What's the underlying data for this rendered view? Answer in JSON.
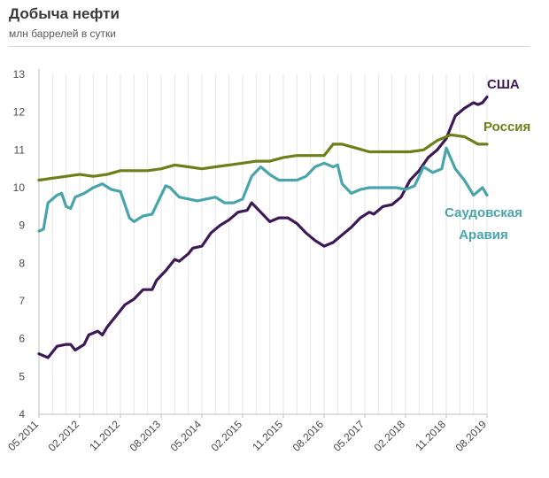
{
  "title": "Добыча нефти",
  "subtitle": "млн баррелей в сутки",
  "chart_data": {
    "type": "line",
    "title": "Добыча нефти",
    "ylabel": "млн баррелей в сутки",
    "xlabel": "",
    "x_tick_labels": [
      "05.2011",
      "02.2012",
      "11.2012",
      "08.2013",
      "05.2014",
      "02.2015",
      "11.2015",
      "08.2016",
      "05.2017",
      "02.2018",
      "11.2018",
      "08.2019"
    ],
    "y_ticks": [
      4,
      5,
      6,
      7,
      8,
      9,
      10,
      11,
      12,
      13
    ],
    "ylim": [
      4,
      13
    ],
    "grid": "vertical",
    "x_start": "2011-05",
    "x_end": "2019-08",
    "series": [
      {
        "name": "США",
        "color": "#3d1a56",
        "points": [
          [
            "2011-05",
            5.6
          ],
          [
            "2011-07",
            5.5
          ],
          [
            "2011-09",
            5.8
          ],
          [
            "2011-11",
            5.85
          ],
          [
            "2011-12",
            5.85
          ],
          [
            "2012-01",
            5.7
          ],
          [
            "2012-03",
            5.85
          ],
          [
            "2012-04",
            6.1
          ],
          [
            "2012-06",
            6.2
          ],
          [
            "2012-07",
            6.1
          ],
          [
            "2012-08",
            6.3
          ],
          [
            "2012-10",
            6.6
          ],
          [
            "2012-12",
            6.9
          ],
          [
            "2013-02",
            7.05
          ],
          [
            "2013-04",
            7.3
          ],
          [
            "2013-06",
            7.3
          ],
          [
            "2013-07",
            7.55
          ],
          [
            "2013-09",
            7.8
          ],
          [
            "2013-11",
            8.1
          ],
          [
            "2013-12",
            8.05
          ],
          [
            "2014-02",
            8.25
          ],
          [
            "2014-03",
            8.4
          ],
          [
            "2014-05",
            8.45
          ],
          [
            "2014-07",
            8.8
          ],
          [
            "2014-09",
            9.0
          ],
          [
            "2014-11",
            9.15
          ],
          [
            "2015-01",
            9.35
          ],
          [
            "2015-03",
            9.4
          ],
          [
            "2015-04",
            9.6
          ],
          [
            "2015-06",
            9.35
          ],
          [
            "2015-08",
            9.1
          ],
          [
            "2015-10",
            9.2
          ],
          [
            "2015-12",
            9.2
          ],
          [
            "2016-02",
            9.05
          ],
          [
            "2016-04",
            8.8
          ],
          [
            "2016-06",
            8.6
          ],
          [
            "2016-08",
            8.45
          ],
          [
            "2016-10",
            8.55
          ],
          [
            "2016-12",
            8.75
          ],
          [
            "2017-02",
            8.95
          ],
          [
            "2017-04",
            9.2
          ],
          [
            "2017-06",
            9.35
          ],
          [
            "2017-07",
            9.3
          ],
          [
            "2017-09",
            9.5
          ],
          [
            "2017-11",
            9.55
          ],
          [
            "2018-01",
            9.75
          ],
          [
            "2018-03",
            10.2
          ],
          [
            "2018-05",
            10.45
          ],
          [
            "2018-07",
            10.8
          ],
          [
            "2018-09",
            11.0
          ],
          [
            "2018-11",
            11.3
          ],
          [
            "2019-01",
            11.9
          ],
          [
            "2019-03",
            12.1
          ],
          [
            "2019-05",
            12.25
          ],
          [
            "2019-06",
            12.2
          ],
          [
            "2019-07",
            12.25
          ],
          [
            "2019-08",
            12.4
          ]
        ]
      },
      {
        "name": "Россия",
        "color": "#6e7f1a",
        "points": [
          [
            "2011-05",
            10.2
          ],
          [
            "2011-08",
            10.25
          ],
          [
            "2011-11",
            10.3
          ],
          [
            "2012-02",
            10.35
          ],
          [
            "2012-05",
            10.3
          ],
          [
            "2012-08",
            10.35
          ],
          [
            "2012-11",
            10.45
          ],
          [
            "2013-02",
            10.45
          ],
          [
            "2013-05",
            10.45
          ],
          [
            "2013-08",
            10.5
          ],
          [
            "2013-11",
            10.6
          ],
          [
            "2014-02",
            10.55
          ],
          [
            "2014-05",
            10.5
          ],
          [
            "2014-08",
            10.55
          ],
          [
            "2014-11",
            10.6
          ],
          [
            "2015-02",
            10.65
          ],
          [
            "2015-05",
            10.7
          ],
          [
            "2015-08",
            10.7
          ],
          [
            "2015-11",
            10.8
          ],
          [
            "2016-02",
            10.85
          ],
          [
            "2016-05",
            10.85
          ],
          [
            "2016-08",
            10.85
          ],
          [
            "2016-10",
            11.15
          ],
          [
            "2016-12",
            11.15
          ],
          [
            "2017-03",
            11.05
          ],
          [
            "2017-06",
            10.95
          ],
          [
            "2017-09",
            10.95
          ],
          [
            "2017-12",
            10.95
          ],
          [
            "2018-03",
            10.95
          ],
          [
            "2018-06",
            11.0
          ],
          [
            "2018-09",
            11.25
          ],
          [
            "2018-12",
            11.4
          ],
          [
            "2019-03",
            11.35
          ],
          [
            "2019-06",
            11.15
          ],
          [
            "2019-08",
            11.15
          ]
        ]
      },
      {
        "name": "Саудовская Аравия",
        "color": "#4aa5ab",
        "points": [
          [
            "2011-05",
            8.85
          ],
          [
            "2011-06",
            8.9
          ],
          [
            "2011-07",
            9.6
          ],
          [
            "2011-09",
            9.8
          ],
          [
            "2011-10",
            9.85
          ],
          [
            "2011-11",
            9.5
          ],
          [
            "2011-12",
            9.45
          ],
          [
            "2012-01",
            9.75
          ],
          [
            "2012-03",
            9.85
          ],
          [
            "2012-05",
            10.0
          ],
          [
            "2012-07",
            10.1
          ],
          [
            "2012-09",
            9.95
          ],
          [
            "2012-11",
            9.9
          ],
          [
            "2013-01",
            9.2
          ],
          [
            "2013-02",
            9.1
          ],
          [
            "2013-04",
            9.25
          ],
          [
            "2013-06",
            9.3
          ],
          [
            "2013-08",
            9.8
          ],
          [
            "2013-09",
            10.05
          ],
          [
            "2013-10",
            10.0
          ],
          [
            "2013-12",
            9.75
          ],
          [
            "2014-02",
            9.7
          ],
          [
            "2014-04",
            9.65
          ],
          [
            "2014-06",
            9.7
          ],
          [
            "2014-08",
            9.75
          ],
          [
            "2014-10",
            9.6
          ],
          [
            "2014-12",
            9.6
          ],
          [
            "2015-02",
            9.7
          ],
          [
            "2015-04",
            10.3
          ],
          [
            "2015-06",
            10.55
          ],
          [
            "2015-08",
            10.35
          ],
          [
            "2015-10",
            10.2
          ],
          [
            "2015-12",
            10.2
          ],
          [
            "2016-02",
            10.2
          ],
          [
            "2016-04",
            10.3
          ],
          [
            "2016-06",
            10.55
          ],
          [
            "2016-08",
            10.65
          ],
          [
            "2016-10",
            10.55
          ],
          [
            "2016-11",
            10.6
          ],
          [
            "2016-12",
            10.1
          ],
          [
            "2017-02",
            9.85
          ],
          [
            "2017-04",
            9.95
          ],
          [
            "2017-06",
            10.0
          ],
          [
            "2017-08",
            10.0
          ],
          [
            "2017-10",
            10.0
          ],
          [
            "2017-12",
            10.0
          ],
          [
            "2018-02",
            9.95
          ],
          [
            "2018-04",
            10.05
          ],
          [
            "2018-06",
            10.55
          ],
          [
            "2018-08",
            10.4
          ],
          [
            "2018-10",
            10.5
          ],
          [
            "2018-11",
            11.05
          ],
          [
            "2019-01",
            10.5
          ],
          [
            "2019-03",
            10.2
          ],
          [
            "2019-05",
            9.8
          ],
          [
            "2019-07",
            10.0
          ],
          [
            "2019-08",
            9.8
          ]
        ]
      }
    ]
  }
}
